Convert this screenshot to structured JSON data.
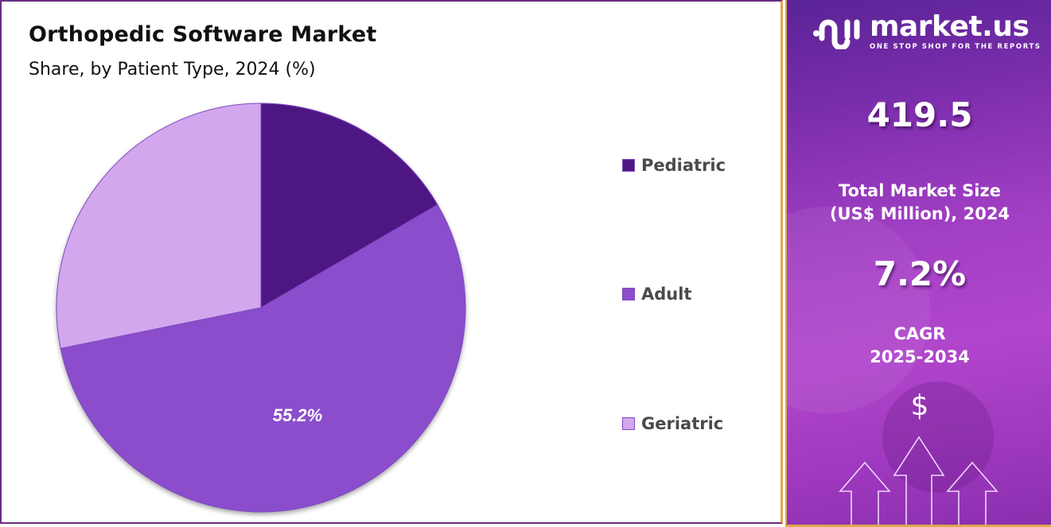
{
  "header": {
    "title": "Orthopedic Software Market",
    "subtitle": "Share, by Patient Type, 2024 (%)"
  },
  "legend": {
    "items": [
      {
        "label": "Pediatric",
        "color": "#4e1783"
      },
      {
        "label": "Adult",
        "color": "#8b4dcc"
      },
      {
        "label": "Geriatric",
        "color": "#d3a7ee"
      }
    ]
  },
  "pie_label": "55.2%",
  "side_panel": {
    "brand": "market.us",
    "tagline": "ONE STOP SHOP FOR THE REPORTS",
    "market_size_value": "419.5",
    "market_size_label_line1": "Total Market Size",
    "market_size_label_line2": "(US$ Million), 2024",
    "cagr_value": "7.2%",
    "cagr_label_line1": "CAGR",
    "cagr_label_line2": "2025-2034",
    "dollar_icon": "$"
  },
  "chart_data": {
    "type": "pie",
    "title": "Orthopedic Software Market",
    "subtitle": "Share, by Patient Type, 2024 (%)",
    "categories": [
      "Pediatric",
      "Adult",
      "Geriatric"
    ],
    "values": [
      16.6,
      55.2,
      28.2
    ],
    "labeled_values": {
      "Adult": 55.2
    },
    "colors": [
      "#4e1783",
      "#8b4dcc",
      "#d3a7ee"
    ],
    "legend_position": "right",
    "start_angle_deg": 0,
    "direction": "clockwise"
  }
}
